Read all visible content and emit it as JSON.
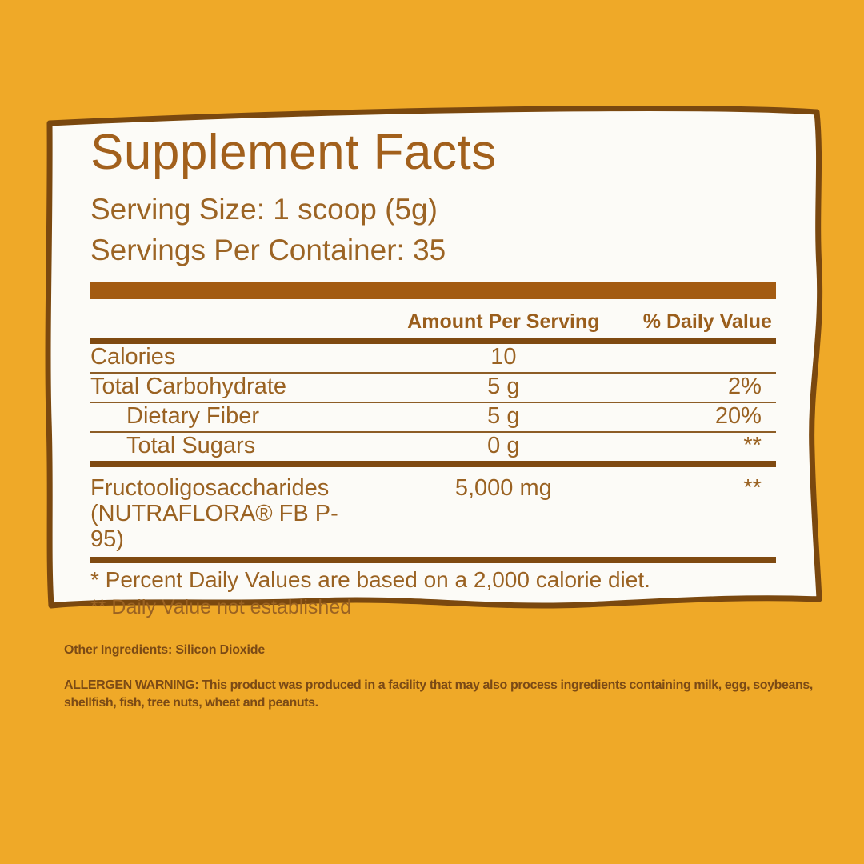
{
  "colors": {
    "background": "#EFA928",
    "panel_fill": "#FCFBF7",
    "panel_border": "#7A480F",
    "title_text": "#A2601C",
    "serving_text": "#9C6424",
    "table_text": "#9A6222",
    "header_text": "#9A5E1C",
    "bar": "#A35B12",
    "thick_line": "#7F4A11",
    "thin_line": "#8D5D26",
    "dark_text": "#7B4A15"
  },
  "panel": {
    "title": "Supplement Facts",
    "serving_size": "Serving Size: 1 scoop (5g)",
    "servings_per_container": "Servings Per Container: 35"
  },
  "table": {
    "headers": {
      "amount": "Amount Per Serving",
      "daily_value": "% Daily Value"
    },
    "rows": [
      {
        "name": "Calories",
        "amount": "10",
        "daily_value": "",
        "indent": false,
        "divider": "thin"
      },
      {
        "name": "Total Carbohydrate",
        "amount": "5 g",
        "daily_value": "2%",
        "indent": false,
        "divider": "thin"
      },
      {
        "name": "Dietary Fiber",
        "amount": "5 g",
        "daily_value": "20%",
        "indent": true,
        "divider": "thin"
      },
      {
        "name": "Total Sugars",
        "amount": "0 g",
        "daily_value": "**",
        "indent": true,
        "divider": "thick"
      },
      {
        "name": "Fructooligosaccharides",
        "name_line2": "(NUTRAFLORA® FB P-95)",
        "amount": "5,000 mg",
        "daily_value": "**",
        "indent": false,
        "divider": "thick",
        "tall": true
      }
    ]
  },
  "footnotes": {
    "daily_value_note": "* Percent Daily Values are based on a 2,000 calorie diet.",
    "not_established_note": "** Daily Value not established"
  },
  "other_ingredients": "Other Ingredients: Silicon Dioxide",
  "allergen_warning": "ALLERGEN WARNING: This product was produced in a facility that may also process ingredients containing milk, egg, soybeans, shellfish, fish, tree nuts, wheat and peanuts."
}
